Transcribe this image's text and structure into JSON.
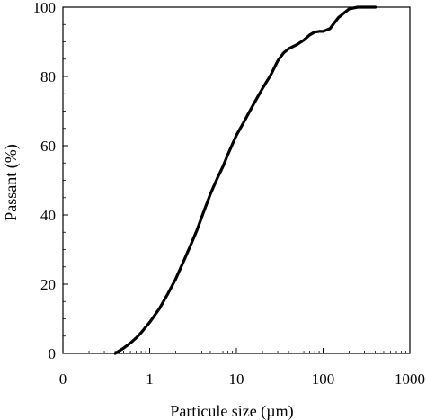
{
  "chart_data": {
    "type": "line",
    "title": "",
    "xlabel": "Particule size (µm)",
    "ylabel": "Passant (%)",
    "xscale": "log",
    "xlim": [
      0.1,
      1000
    ],
    "ylim": [
      0,
      100
    ],
    "grid": false,
    "x_tick_labels": [
      "0",
      "1",
      "10",
      "100",
      "1000"
    ],
    "y_tick_labels": [
      "0",
      "20",
      "40",
      "60",
      "80",
      "100"
    ],
    "line_color": "#000000",
    "series": [
      {
        "x": [
          0.4,
          0.5,
          0.6,
          0.7,
          0.8,
          1.0,
          1.3,
          1.6,
          2.0,
          2.5,
          3.0,
          3.5,
          4.0,
          5.0,
          6.0,
          7.0,
          8.0,
          10,
          12,
          15,
          18,
          20,
          25,
          30,
          35,
          40,
          50,
          60,
          70,
          80,
          90,
          100,
          120,
          150,
          200,
          250,
          300,
          400
        ],
        "y": [
          0,
          1.5,
          3,
          4.5,
          6,
          9,
          13,
          17,
          21.5,
          27,
          31.5,
          35.5,
          39.5,
          46,
          50.5,
          54,
          57.5,
          63,
          66.5,
          71,
          74.5,
          76.5,
          80.5,
          84.5,
          86.8,
          88,
          89.2,
          90.5,
          92,
          92.8,
          93,
          93,
          93.8,
          97,
          99.5,
          100,
          100,
          100
        ]
      }
    ]
  }
}
